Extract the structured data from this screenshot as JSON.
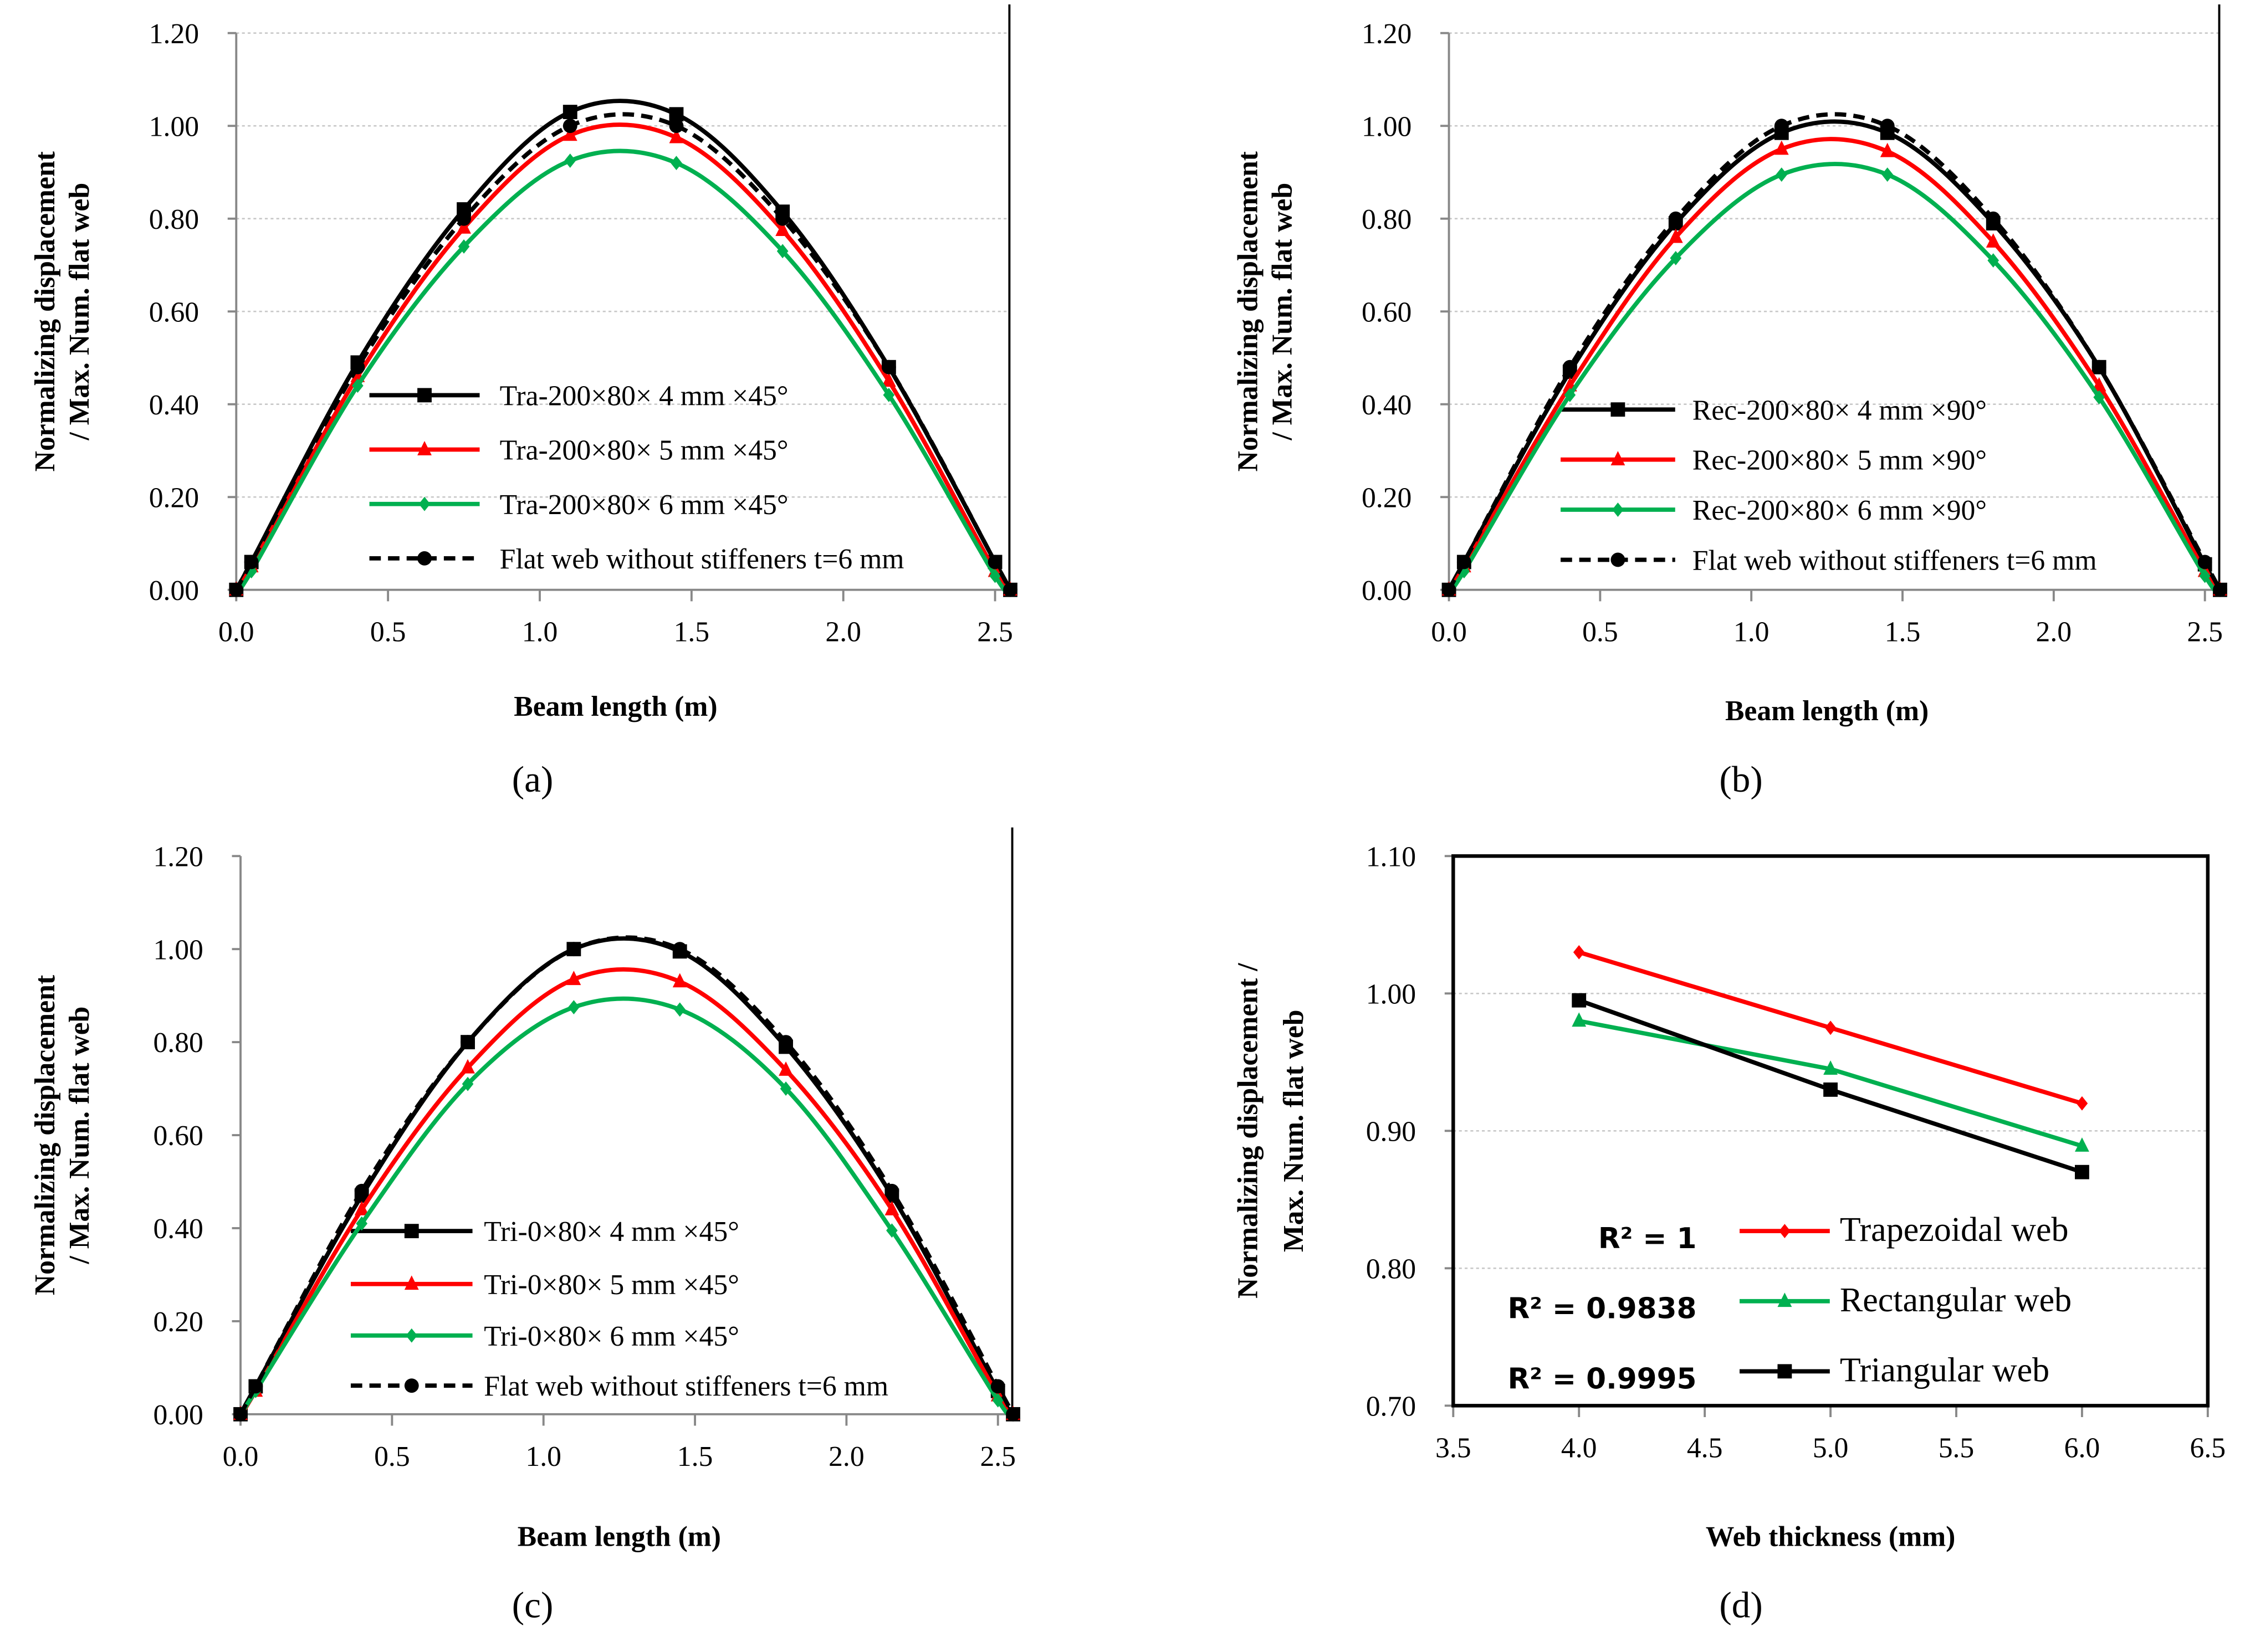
{
  "chart_data": [
    {
      "type": "line",
      "panel_label": "(a)",
      "xlabel": "Beam length (m)",
      "ylabel": [
        "Normalizing displacement",
        "/ Max. Num. flat web"
      ],
      "xlim": [
        0,
        2.5
      ],
      "ylim": [
        0,
        1.2
      ],
      "xticks": [
        "0.0",
        "0.5",
        "1.0",
        "1.5",
        "2.0",
        "2.5"
      ],
      "yticks": [
        "0.00",
        "0.20",
        "0.40",
        "0.60",
        "0.80",
        "1.00",
        "1.20"
      ],
      "grid": true,
      "legend_position": "bottom-center",
      "x": [
        0,
        0.05,
        0.4,
        0.75,
        1.1,
        1.45,
        1.8,
        2.15,
        2.5,
        2.55
      ],
      "series": [
        {
          "name": "Tra-200×80×  4 mm  ×45°",
          "color": "#000000",
          "marker": "square",
          "dashed": false,
          "values": [
            0,
            0.06,
            0.49,
            0.82,
            1.03,
            1.025,
            0.815,
            0.48,
            0.06,
            0
          ]
        },
        {
          "name": "Tra-200×80×  5 mm  ×45°",
          "color": "#ff0000",
          "marker": "triangle",
          "dashed": false,
          "values": [
            0,
            0.05,
            0.46,
            0.78,
            0.98,
            0.975,
            0.775,
            0.45,
            0.04,
            0
          ]
        },
        {
          "name": "Tra-200×80×  6 mm  ×45°",
          "color": "#00b050",
          "marker": "diamond",
          "dashed": false,
          "values": [
            0,
            0.04,
            0.44,
            0.74,
            0.925,
            0.92,
            0.73,
            0.42,
            0.03,
            0
          ]
        },
        {
          "name": "Flat web without stiffeners t=6 mm",
          "color": "#000000",
          "marker": "circle",
          "dashed": true,
          "values": [
            0,
            0.06,
            0.48,
            0.8,
            1.0,
            1.0,
            0.8,
            0.48,
            0.06,
            0
          ]
        }
      ]
    },
    {
      "type": "line",
      "panel_label": "(b)",
      "xlabel": "Beam length (m)",
      "ylabel": [
        "Normalizing displacement",
        "/ Max. Num. flat web"
      ],
      "xlim": [
        0,
        2.5
      ],
      "ylim": [
        0,
        1.2
      ],
      "xticks": [
        "0.0",
        "0.5",
        "1.0",
        "1.5",
        "2.0",
        "2.5"
      ],
      "yticks": [
        "0.00",
        "0.20",
        "0.40",
        "0.60",
        "0.80",
        "1.00",
        "1.20"
      ],
      "grid": true,
      "legend_position": "bottom-center",
      "x": [
        0,
        0.05,
        0.4,
        0.75,
        1.1,
        1.45,
        1.8,
        2.15,
        2.5,
        2.55
      ],
      "series": [
        {
          "name": "Rec-200×80×  4 mm  ×90°",
          "color": "#000000",
          "marker": "square",
          "dashed": false,
          "values": [
            0,
            0.06,
            0.47,
            0.79,
            0.985,
            0.985,
            0.79,
            0.48,
            0.055,
            0
          ]
        },
        {
          "name": "Rec-200×80×  5 mm  ×90°",
          "color": "#ff0000",
          "marker": "triangle",
          "dashed": false,
          "values": [
            0,
            0.05,
            0.44,
            0.76,
            0.95,
            0.945,
            0.75,
            0.44,
            0.04,
            0
          ]
        },
        {
          "name": "Rec-200×80×  6 mm  ×90°",
          "color": "#00b050",
          "marker": "diamond",
          "dashed": false,
          "values": [
            0,
            0.04,
            0.42,
            0.715,
            0.895,
            0.895,
            0.71,
            0.415,
            0.03,
            0
          ]
        },
        {
          "name": "Flat web without stiffeners t=6 mm",
          "color": "#000000",
          "marker": "circle",
          "dashed": true,
          "values": [
            0,
            0.06,
            0.48,
            0.8,
            1.0,
            1.0,
            0.8,
            0.48,
            0.06,
            0
          ]
        }
      ]
    },
    {
      "type": "line",
      "panel_label": "(c)",
      "xlabel": "Beam length (m)",
      "ylabel": [
        "Normalizing displacement",
        "/ Max. Num. flat web"
      ],
      "xlim": [
        0,
        2.5
      ],
      "ylim": [
        0,
        1.2
      ],
      "xticks": [
        "0.0",
        "0.5",
        "1.0",
        "1.5",
        "2.0",
        "2.5"
      ],
      "yticks": [
        "0.00",
        "0.20",
        "0.40",
        "0.60",
        "0.80",
        "1.00",
        "1.20"
      ],
      "grid": false,
      "legend_position": "bottom-center",
      "x": [
        0,
        0.05,
        0.4,
        0.75,
        1.1,
        1.45,
        1.8,
        2.15,
        2.5,
        2.55
      ],
      "series": [
        {
          "name": "Tri-0×80×  4 mm  ×45°",
          "color": "#000000",
          "marker": "square",
          "dashed": false,
          "values": [
            0,
            0.06,
            0.47,
            0.8,
            1.0,
            0.995,
            0.79,
            0.47,
            0.05,
            0
          ]
        },
        {
          "name": "Tri-0×80×  5 mm  ×45°",
          "color": "#ff0000",
          "marker": "triangle",
          "dashed": false,
          "values": [
            0,
            0.05,
            0.44,
            0.745,
            0.935,
            0.93,
            0.74,
            0.44,
            0.04,
            0
          ]
        },
        {
          "name": "Tri-0×80×  6 mm  ×45°",
          "color": "#00b050",
          "marker": "diamond",
          "dashed": false,
          "values": [
            0,
            0.05,
            0.41,
            0.71,
            0.875,
            0.87,
            0.7,
            0.395,
            0.03,
            0
          ]
        },
        {
          "name": "Flat web without stiffeners t=6 mm",
          "color": "#000000",
          "marker": "circle",
          "dashed": true,
          "values": [
            0,
            0.06,
            0.48,
            0.8,
            1.0,
            1.0,
            0.8,
            0.48,
            0.06,
            0
          ]
        }
      ]
    },
    {
      "type": "line",
      "panel_label": "(d)",
      "xlabel": "Web thickness (mm)",
      "ylabel": [
        "Normalizing displacement /",
        "Max. Num. flat web"
      ],
      "xlim": [
        3.5,
        6.5
      ],
      "ylim": [
        0.7,
        1.1
      ],
      "xticks": [
        "3.5",
        "4.0",
        "4.5",
        "5.0",
        "5.5",
        "6.0",
        "6.5"
      ],
      "yticks": [
        "0.70",
        "0.80",
        "0.90",
        "1.00",
        "1.10"
      ],
      "grid": true,
      "legend_position": "bottom-right",
      "x": [
        4.0,
        5.0,
        6.0
      ],
      "series": [
        {
          "name": "Trapezoidal web",
          "r2": "R² = 1",
          "color": "#ff0000",
          "marker": "diamond",
          "dashed": false,
          "values": [
            1.03,
            0.975,
            0.92
          ]
        },
        {
          "name": "Rectangular web",
          "r2": "R² = 0.9838",
          "color": "#00b050",
          "marker": "triangle",
          "dashed": false,
          "values": [
            0.98,
            0.945,
            0.889
          ]
        },
        {
          "name": "Triangular web",
          "r2": "R² = 0.9995",
          "color": "#000000",
          "marker": "square",
          "dashed": false,
          "values": [
            0.995,
            0.93,
            0.87
          ]
        }
      ]
    }
  ]
}
